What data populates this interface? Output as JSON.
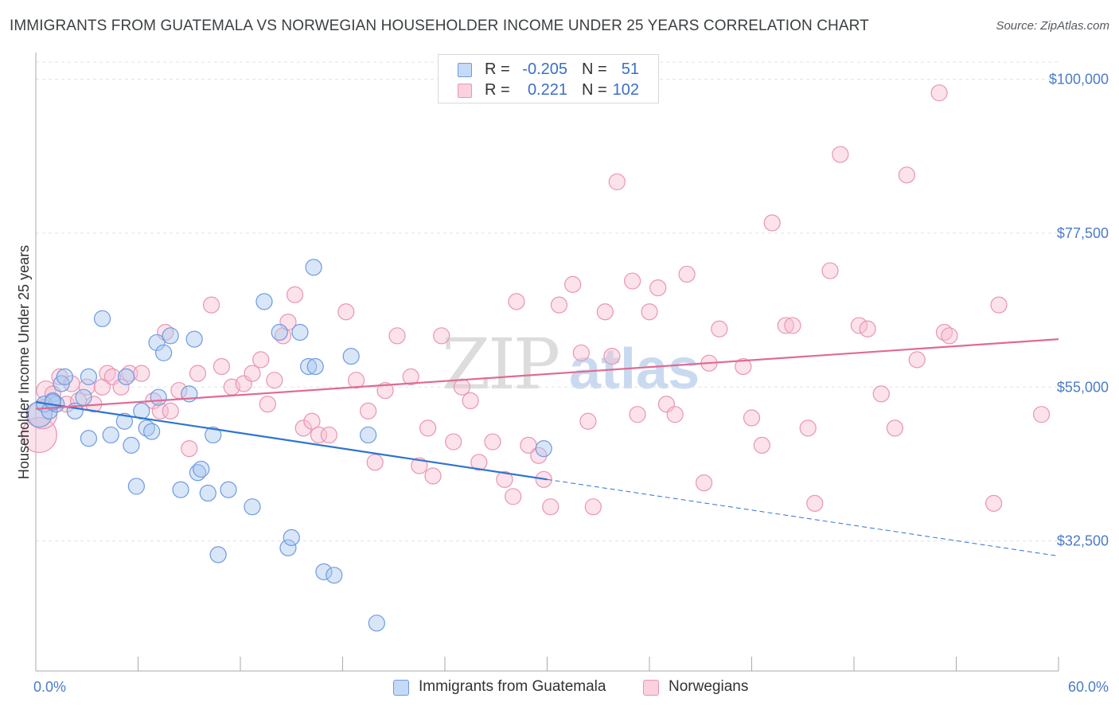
{
  "title": "IMMIGRANTS FROM GUATEMALA VS NORWEGIAN HOUSEHOLDER INCOME UNDER 25 YEARS CORRELATION CHART",
  "source": "Source: ZipAtlas.com",
  "watermark": {
    "zip": "ZIP",
    "atlas": "atlas"
  },
  "colors": {
    "blue_fill": "#a9c8f0",
    "blue_stroke": "#6d9be0",
    "blue_line": "#2f74d0",
    "pink_fill": "#f7bfd2",
    "pink_stroke": "#e995b2",
    "pink_line": "#e06a94",
    "axis_text": "#4a7cc9",
    "grid": "#e3e3e3"
  },
  "legend_top": [
    {
      "series": "blue",
      "r_label": "R =",
      "r_value": "-0.205",
      "n_label": "N =",
      "n_value": "51"
    },
    {
      "series": "pink",
      "r_label": "R =",
      "r_value": "0.221",
      "n_label": "N =",
      "n_value": "102"
    }
  ],
  "chart_data": {
    "type": "scatter",
    "title": "IMMIGRANTS FROM GUATEMALA VS NORWEGIAN HOUSEHOLDER INCOME UNDER 25 YEARS CORRELATION CHART",
    "xlabel": "",
    "ylabel": "Householder Income Under 25 years",
    "xlim": [
      0,
      60
    ],
    "ylim": [
      13500,
      102500
    ],
    "x_tick_labels": [
      "0.0%",
      "60.0%"
    ],
    "y_ticks": [
      32500,
      55000,
      77500,
      100000
    ],
    "y_tick_labels": [
      "$32,500",
      "$55,000",
      "$77,500",
      "$100,000"
    ],
    "grid": true,
    "legend_placement": "top-center",
    "series": [
      {
        "name": "Immigrants from Guatemala",
        "color": "blue",
        "trend": {
          "x0": 0,
          "y0": 52800,
          "x1": 30,
          "y1": 41500,
          "dashed_to_x": 60,
          "dashed_to_y": 30300
        },
        "points": [
          [
            0.2,
            51,
            16
          ],
          [
            0.5,
            52.5,
            10
          ],
          [
            0.8,
            51.5,
            10
          ],
          [
            1.2,
            52.5,
            10
          ],
          [
            1.0,
            53,
            10
          ],
          [
            1.5,
            55.5,
            10
          ],
          [
            1.7,
            56.5,
            10
          ],
          [
            2.3,
            51.5,
            10
          ],
          [
            2.8,
            53.5,
            10
          ],
          [
            3.1,
            56.5,
            10
          ],
          [
            3.9,
            65,
            10
          ],
          [
            4.4,
            48,
            10
          ],
          [
            3.1,
            47.5,
            10
          ],
          [
            5.2,
            50,
            10
          ],
          [
            5.3,
            56.5,
            10
          ],
          [
            5.6,
            46.5,
            10
          ],
          [
            5.9,
            40.5,
            10
          ],
          [
            6.2,
            51.5,
            10
          ],
          [
            6.5,
            49,
            10
          ],
          [
            6.8,
            48.5,
            10
          ],
          [
            7.1,
            61.5,
            10
          ],
          [
            7.5,
            60,
            10
          ],
          [
            7.2,
            53.5,
            10
          ],
          [
            7.9,
            62.5,
            10
          ],
          [
            8.5,
            40,
            10
          ],
          [
            9.0,
            54,
            10
          ],
          [
            9.3,
            62,
            10
          ],
          [
            9.5,
            42.5,
            10
          ],
          [
            9.7,
            43,
            10
          ],
          [
            10.1,
            39.5,
            10
          ],
          [
            10.4,
            48,
            10
          ],
          [
            10.7,
            30.5,
            10
          ],
          [
            11.3,
            40,
            10
          ],
          [
            12.7,
            37.5,
            10
          ],
          [
            13.4,
            67.5,
            10
          ],
          [
            14.3,
            63,
            10
          ],
          [
            14.8,
            31.5,
            10
          ],
          [
            15.0,
            33,
            10
          ],
          [
            15.5,
            63,
            10
          ],
          [
            16.0,
            58,
            10
          ],
          [
            16.4,
            58,
            10
          ],
          [
            16.3,
            72.5,
            10
          ],
          [
            16.9,
            28,
            10
          ],
          [
            17.5,
            27.5,
            10
          ],
          [
            18.5,
            59.5,
            10
          ],
          [
            19.5,
            48,
            10
          ],
          [
            20.0,
            20.5,
            10
          ],
          [
            29.8,
            46,
            10
          ],
          [
            26.5,
            37,
            0
          ],
          [
            1.0,
            52.8,
            10
          ],
          [
            2.5,
            54.5,
            0
          ]
        ]
      },
      {
        "name": "Norwegians",
        "color": "pink",
        "trend": {
          "x0": 0,
          "y0": 51800,
          "x1": 60,
          "y1": 62000
        },
        "points": [
          [
            0.2,
            48,
            22
          ],
          [
            0.4,
            51,
            18
          ],
          [
            0.6,
            54.5,
            12
          ],
          [
            1.0,
            54,
            10
          ],
          [
            1.4,
            56.5,
            10
          ],
          [
            1.8,
            52.5,
            10
          ],
          [
            2.1,
            55.5,
            10
          ],
          [
            2.5,
            53,
            10
          ],
          [
            3.0,
            55,
            10
          ],
          [
            3.4,
            52.5,
            10
          ],
          [
            3.9,
            55,
            10
          ],
          [
            4.2,
            57,
            10
          ],
          [
            4.5,
            56.5,
            10
          ],
          [
            5.0,
            55,
            10
          ],
          [
            5.5,
            57,
            10
          ],
          [
            6.2,
            57,
            10
          ],
          [
            6.9,
            53,
            10
          ],
          [
            7.3,
            51.5,
            10
          ],
          [
            7.6,
            63,
            10
          ],
          [
            7.9,
            51.5,
            10
          ],
          [
            8.4,
            54.5,
            10
          ],
          [
            9.0,
            46,
            10
          ],
          [
            9.5,
            57,
            10
          ],
          [
            10.3,
            67,
            10
          ],
          [
            10.9,
            58,
            10
          ],
          [
            11.5,
            55,
            10
          ],
          [
            12.2,
            55.5,
            10
          ],
          [
            12.7,
            57,
            10
          ],
          [
            13.2,
            59,
            10
          ],
          [
            13.6,
            52.5,
            10
          ],
          [
            14.0,
            56,
            10
          ],
          [
            14.5,
            62.5,
            10
          ],
          [
            14.8,
            64.5,
            10
          ],
          [
            15.2,
            68.5,
            10
          ],
          [
            15.7,
            49,
            10
          ],
          [
            16.2,
            50,
            10
          ],
          [
            16.6,
            48,
            10
          ],
          [
            17.2,
            48,
            10
          ],
          [
            18.2,
            66,
            10
          ],
          [
            18.8,
            56,
            10
          ],
          [
            19.5,
            51.5,
            10
          ],
          [
            19.9,
            44,
            10
          ],
          [
            20.5,
            54.5,
            10
          ],
          [
            21.2,
            62.5,
            10
          ],
          [
            22.0,
            56.5,
            10
          ],
          [
            22.5,
            43.5,
            10
          ],
          [
            23.0,
            49,
            10
          ],
          [
            23.3,
            42,
            10
          ],
          [
            23.8,
            62.5,
            10
          ],
          [
            24.5,
            47,
            10
          ],
          [
            25.0,
            55,
            10
          ],
          [
            25.5,
            53,
            10
          ],
          [
            26.0,
            44,
            10
          ],
          [
            26.8,
            47,
            10
          ],
          [
            27.5,
            41.5,
            10
          ],
          [
            28.0,
            39,
            10
          ],
          [
            28.2,
            67.5,
            10
          ],
          [
            28.9,
            46.5,
            10
          ],
          [
            29.5,
            45,
            10
          ],
          [
            29.8,
            41.5,
            10
          ],
          [
            30.2,
            37.5,
            10
          ],
          [
            30.7,
            67,
            10
          ],
          [
            31.5,
            70,
            10
          ],
          [
            32.0,
            60,
            10
          ],
          [
            32.4,
            50,
            10
          ],
          [
            32.7,
            37.5,
            10
          ],
          [
            33.4,
            66,
            10
          ],
          [
            33.8,
            59.5,
            10
          ],
          [
            34.1,
            85,
            10
          ],
          [
            35.0,
            70.5,
            10
          ],
          [
            35.3,
            51,
            10
          ],
          [
            36.0,
            66,
            10
          ],
          [
            36.5,
            69.5,
            10
          ],
          [
            37.0,
            52.5,
            10
          ],
          [
            37.5,
            51,
            10
          ],
          [
            38.2,
            71.5,
            10
          ],
          [
            39.2,
            41,
            10
          ],
          [
            39.5,
            58.5,
            10
          ],
          [
            40.1,
            63.5,
            10
          ],
          [
            41.5,
            58,
            10
          ],
          [
            42.0,
            50.5,
            10
          ],
          [
            42.6,
            46.5,
            10
          ],
          [
            43.2,
            79,
            10
          ],
          [
            44.0,
            64,
            10
          ],
          [
            44.4,
            64,
            10
          ],
          [
            45.3,
            49,
            10
          ],
          [
            45.7,
            38,
            10
          ],
          [
            46.6,
            72,
            10
          ],
          [
            47.2,
            89,
            10
          ],
          [
            48.3,
            64,
            10
          ],
          [
            48.8,
            63.5,
            10
          ],
          [
            49.6,
            54,
            10
          ],
          [
            50.4,
            49,
            10
          ],
          [
            51.1,
            86,
            10
          ],
          [
            51.7,
            59,
            10
          ],
          [
            53.0,
            98,
            10
          ],
          [
            53.3,
            63,
            10
          ],
          [
            53.6,
            62.5,
            10
          ],
          [
            56.2,
            38,
            10
          ],
          [
            56.5,
            67,
            10
          ],
          [
            59.0,
            51,
            10
          ],
          [
            2.8,
            53.8,
            0
          ]
        ]
      }
    ]
  },
  "legend_bottom": [
    {
      "series": "blue",
      "label": "Immigrants from Guatemala"
    },
    {
      "series": "pink",
      "label": "Norwegians"
    }
  ]
}
